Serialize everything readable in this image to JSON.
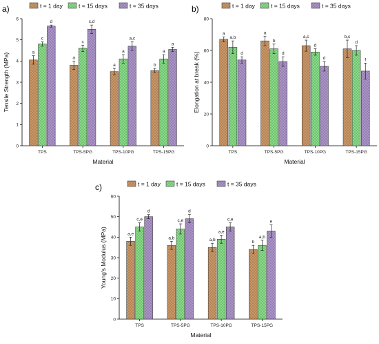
{
  "patterns": {
    "series": [
      {
        "color": "#c8986a",
        "dot": "#a06b3c"
      },
      {
        "color": "#8cd98c",
        "dot": "#4fa84f"
      },
      {
        "color": "#aa95c5",
        "dot": "#7d66a0"
      }
    ]
  },
  "chart_data": [
    {
      "panel_label": "a)",
      "type": "bar",
      "categories": [
        "TPS",
        "TPS-5PG",
        "TPS-10PG",
        "TPS-15PG"
      ],
      "xlabel": "Material",
      "ylabel": "Tensile Strength (MPa)",
      "ylim": [
        0,
        6
      ],
      "yticks": [
        0,
        1,
        2,
        3,
        4,
        5,
        6
      ],
      "legend_position": "top",
      "series": [
        {
          "name": "t = 1 day",
          "values": [
            4.05,
            3.8,
            3.5,
            3.55
          ],
          "errors": [
            0.2,
            0.2,
            0.15,
            0.1
          ],
          "labels": [
            "a",
            "a",
            "a",
            "b"
          ]
        },
        {
          "name": "t = 15 days",
          "values": [
            4.8,
            4.6,
            4.1,
            4.1
          ],
          "errors": [
            0.1,
            0.15,
            0.2,
            0.2
          ],
          "labels": [
            "c",
            "c",
            "a",
            "a"
          ]
        },
        {
          "name": "t = 35 days",
          "values": [
            5.65,
            5.5,
            4.7,
            4.55
          ],
          "errors": [
            0.05,
            0.2,
            0.2,
            0.1
          ],
          "labels": [
            "d",
            "c,d",
            "a,c",
            "a"
          ]
        }
      ]
    },
    {
      "panel_label": "b)",
      "type": "bar",
      "categories": [
        "TPS",
        "TPS-5PG",
        "TPS-10PG",
        "TPS-15PG"
      ],
      "xlabel": "Material",
      "ylabel": "Elongation at break (%)",
      "ylim": [
        0,
        80
      ],
      "yticks": [
        0,
        20,
        40,
        60,
        80
      ],
      "legend_position": "top",
      "series": [
        {
          "name": "t = 1 day",
          "values": [
            67,
            66,
            63,
            61
          ],
          "errors": [
            1.5,
            3,
            3.5,
            5.5
          ],
          "labels": [
            "a",
            "a",
            "a,c",
            "b,c"
          ]
        },
        {
          "name": "t = 15 days",
          "values": [
            62,
            61,
            59,
            60
          ],
          "errors": [
            4,
            3,
            2,
            3
          ],
          "labels": [
            "a,b",
            "b",
            "d",
            "d"
          ]
        },
        {
          "name": "t = 35 days",
          "values": [
            54,
            53,
            50,
            47
          ],
          "errors": [
            2,
            3,
            3,
            5
          ],
          "labels": [
            "d",
            "d",
            "d",
            "f"
          ]
        }
      ]
    },
    {
      "panel_label": "c)",
      "type": "bar",
      "categories": [
        "TPS",
        "TPS-5PG",
        "TPS-10PG",
        "TPS-15PG"
      ],
      "xlabel": "Material",
      "ylabel": "Young's Modulus (MPa)",
      "ylim": [
        0,
        60
      ],
      "yticks": [
        0,
        10,
        20,
        30,
        40,
        50,
        60
      ],
      "legend_position": "top",
      "series": [
        {
          "name": "t = 1 day",
          "values": [
            38,
            36,
            35,
            34
          ],
          "errors": [
            2,
            2,
            2,
            2
          ],
          "labels": [
            "a,e",
            "a,b",
            "a,b",
            "b"
          ]
        },
        {
          "name": "t = 15 days",
          "values": [
            45,
            44,
            39,
            36
          ],
          "errors": [
            2,
            2.5,
            2,
            2.5
          ],
          "labels": [
            "c,e",
            "c,e",
            "a,e",
            "a,b"
          ]
        },
        {
          "name": "t = 35 days",
          "values": [
            50,
            49,
            45,
            43
          ],
          "errors": [
            1,
            2,
            2,
            3
          ],
          "labels": [
            "d",
            "d",
            "c,e",
            "e"
          ]
        }
      ]
    }
  ]
}
